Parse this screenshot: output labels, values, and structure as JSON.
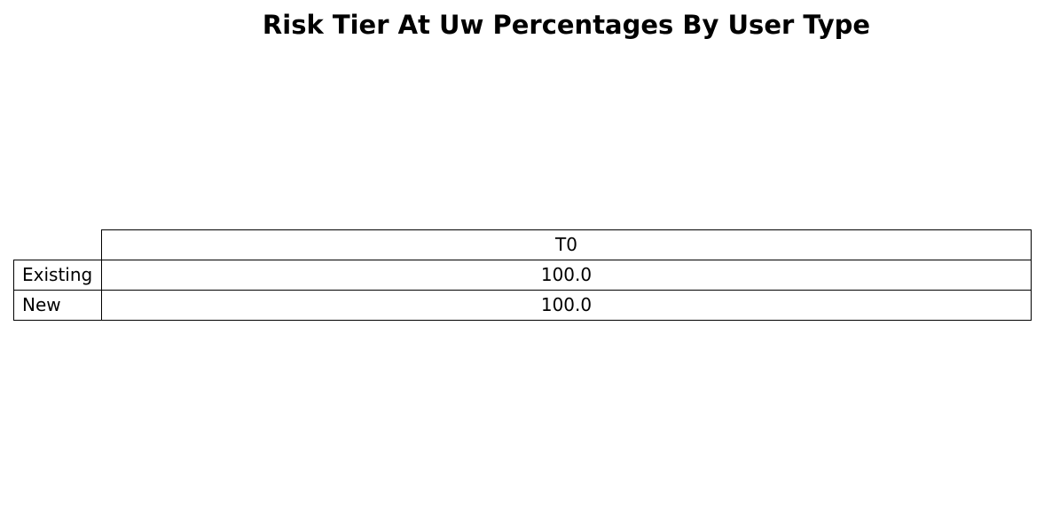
{
  "chart_data": {
    "type": "table",
    "title": "Risk Tier At Uw Percentages By User Type",
    "columns": [
      "T0"
    ],
    "rows": [
      {
        "label": "Existing",
        "values": [
          "100.0"
        ]
      },
      {
        "label": "New",
        "values": [
          "100.0"
        ]
      }
    ]
  }
}
